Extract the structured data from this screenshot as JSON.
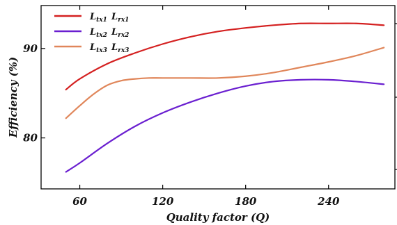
{
  "chart_data": {
    "type": "line",
    "title": "",
    "xlabel": "Quality factor (Q)",
    "ylabel": "Efficiency (%)",
    "xlim": [
      32,
      288
    ],
    "ylim": [
      74.3,
      94.8
    ],
    "xticks": [
      60,
      120,
      180,
      240
    ],
    "yticks": [
      80,
      90
    ],
    "legend_position": "top-left",
    "grid": false,
    "series": [
      {
        "label_main_1": "L",
        "label_sub_1": "tx1",
        "label_main_2": "L",
        "label_sub_2": "rx1",
        "color": "#d42020",
        "x": [
          50,
          60,
          80,
          100,
          120,
          140,
          160,
          180,
          200,
          220,
          240,
          260,
          280
        ],
        "y": [
          85.4,
          86.6,
          88.3,
          89.5,
          90.5,
          91.3,
          91.9,
          92.3,
          92.6,
          92.8,
          92.8,
          92.8,
          92.6
        ]
      },
      {
        "label_main_1": "L",
        "label_sub_1": "tx2",
        "label_main_2": "L",
        "label_sub_2": "rx2",
        "color": "#6a1fd0",
        "x": [
          50,
          60,
          80,
          100,
          120,
          140,
          160,
          180,
          200,
          220,
          240,
          260,
          280
        ],
        "y": [
          76.2,
          77.2,
          79.4,
          81.3,
          82.8,
          84.0,
          85.0,
          85.8,
          86.3,
          86.5,
          86.5,
          86.3,
          86.0
        ]
      },
      {
        "label_main_1": "L",
        "label_sub_1": "tx3",
        "label_main_2": "L",
        "label_sub_2": "rx3",
        "color": "#e0865a",
        "x": [
          50,
          60,
          70,
          80,
          90,
          100,
          110,
          120,
          140,
          160,
          180,
          200,
          220,
          240,
          260,
          280
        ],
        "y": [
          82.2,
          83.6,
          84.9,
          85.9,
          86.4,
          86.6,
          86.7,
          86.7,
          86.7,
          86.7,
          86.9,
          87.3,
          87.9,
          88.5,
          89.2,
          90.1
        ]
      }
    ]
  }
}
